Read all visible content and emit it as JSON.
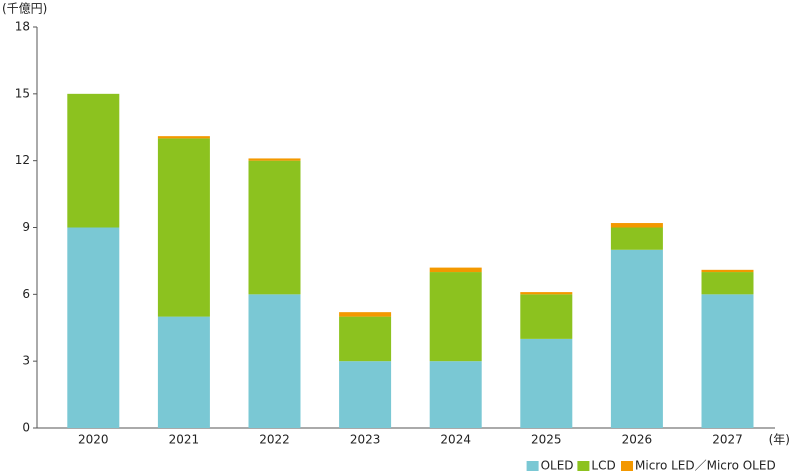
{
  "chart_data": {
    "type": "stacked_bar",
    "y_label": "(千億円)",
    "x_label": "(年)",
    "categories": [
      "2020",
      "2021",
      "2022",
      "2023",
      "2024",
      "2025",
      "2026",
      "2027"
    ],
    "series": [
      {
        "name": "OLED",
        "color": "#7ac8d4",
        "values": [
          9,
          5,
          6,
          3,
          3,
          4,
          8,
          6
        ]
      },
      {
        "name": "LCD",
        "color": "#8cc21f",
        "values": [
          6,
          8,
          6,
          2,
          4,
          2,
          1,
          1
        ]
      },
      {
        "name": "Micro LED／Micro OLED",
        "color": "#f39800",
        "values": [
          0,
          0.1,
          0.1,
          0.2,
          0.2,
          0.1,
          0.2,
          0.1
        ]
      }
    ],
    "ylim": [
      0,
      18
    ],
    "yticks": [
      0,
      3,
      6,
      9,
      12,
      15,
      18
    ],
    "legend": "bottom-right"
  }
}
